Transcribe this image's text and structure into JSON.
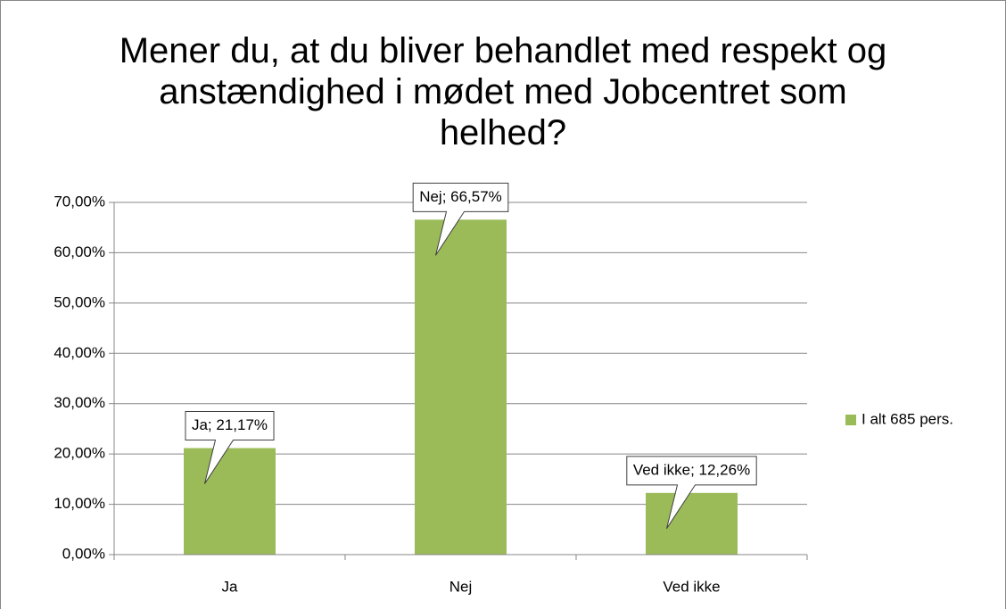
{
  "chart_data": {
    "type": "bar",
    "title": "Mener du, at du bliver behandlet med respekt og anstændighed i mødet med Jobcentret som helhed?",
    "categories": [
      "Ja",
      "Nej",
      "Ved ikke"
    ],
    "series": [
      {
        "name": "I alt 685 pers.",
        "color": "#9bbb59",
        "values": [
          21.17,
          66.57,
          12.26
        ],
        "value_labels": [
          "Ja; 21,17%",
          "Nej; 66,57%",
          "Ved ikke; 12,26%"
        ]
      }
    ],
    "ylim": [
      0,
      70
    ],
    "yticks": [
      {
        "value": 0,
        "label": "0,00%"
      },
      {
        "value": 10,
        "label": "10,00%"
      },
      {
        "value": 20,
        "label": "20,00%"
      },
      {
        "value": 30,
        "label": "30,00%"
      },
      {
        "value": 40,
        "label": "40,00%"
      },
      {
        "value": 50,
        "label": "50,00%"
      },
      {
        "value": 60,
        "label": "60,00%"
      },
      {
        "value": 70,
        "label": "70,00%"
      }
    ],
    "grid": true,
    "legend": "right"
  }
}
